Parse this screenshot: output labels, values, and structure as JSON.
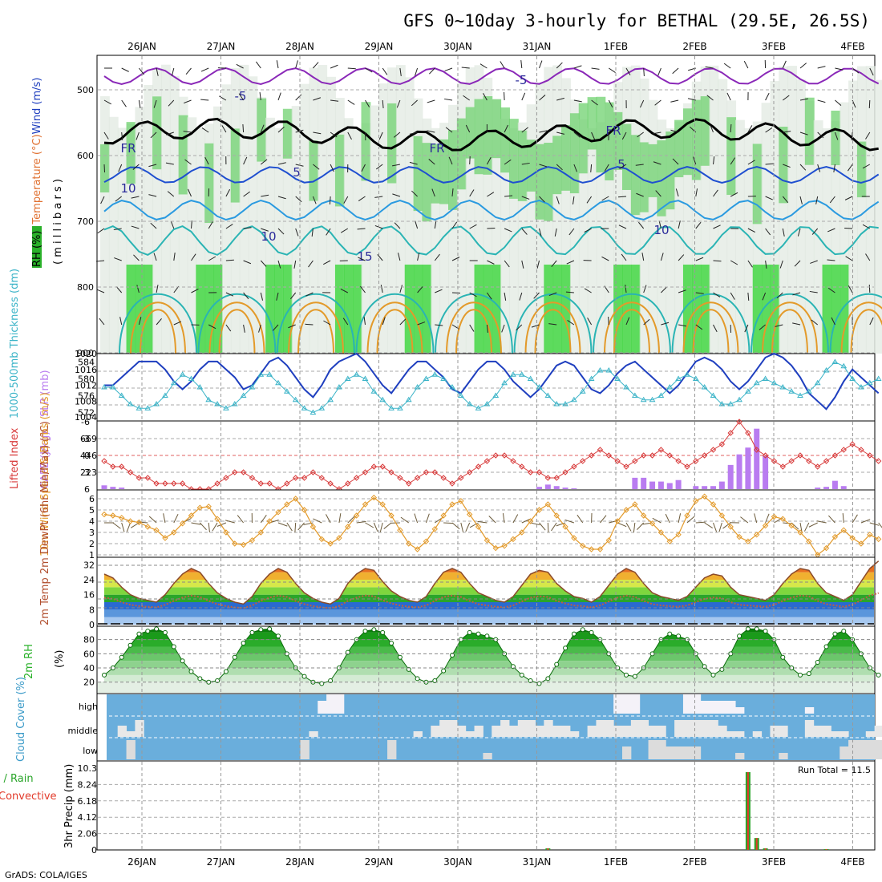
{
  "title": "GFS 0~10day 3-hourly for BETHAL (29.5E, 26.5S)",
  "credit": "GrADS: COLA/IGES",
  "dates": [
    "26JAN",
    "27JAN",
    "28JAN",
    "29JAN",
    "30JAN",
    "31JAN",
    "1FEB",
    "2FEB",
    "3FEB",
    "4FEB"
  ],
  "colors": {
    "slp": "#1f3fbf",
    "thickness": "#3cb4c8",
    "cape": "#b97cf0",
    "li": "#d83a3a",
    "speed": "#e39a2a",
    "barb": "#6b5a3a",
    "temp": "#8b4a2a",
    "dewpt": "#c06040",
    "rh": "#2ab12a",
    "cloud_bg": "#6aaedc",
    "cloud": "#eeeeee",
    "rain": "#2aa52a",
    "conv": "#e23a2a"
  },
  "chart_data": [
    {
      "type": "heatmap",
      "panel": "upper-air",
      "ylabel_parts": [
        "RH (%)",
        "Temperature (°C)",
        "Wind (m/s)"
      ],
      "yunit": "( m i l l i b a r s )",
      "yticks": [
        "500",
        "600",
        "700",
        "800",
        "900"
      ],
      "contour_labels": [
        "-5",
        "-5",
        "FR",
        "FR",
        "FR",
        "5",
        "5",
        "10",
        "10",
        "15",
        "10"
      ]
    },
    {
      "type": "line",
      "panel": "slp-thickness",
      "ylabel_left": "1000-500mb Thickness (dm)",
      "ylabel_right": "SLP (mb)",
      "yticks_left": [
        "584",
        "580",
        "576",
        "572"
      ],
      "yticks_right": [
        "1020",
        "1016",
        "1012",
        "1008",
        "1004"
      ],
      "ylim_left": [
        570,
        586
      ],
      "ylim_right": [
        1003,
        1020
      ],
      "series": [
        {
          "name": "SLP (mb)",
          "values": [
            1012,
            1012,
            1014,
            1016,
            1018,
            1018,
            1018,
            1016,
            1013,
            1011,
            1013,
            1016,
            1018,
            1018,
            1016,
            1014,
            1011,
            1012,
            1015,
            1018,
            1019,
            1017,
            1014,
            1011,
            1009,
            1012,
            1016,
            1018,
            1019,
            1020,
            1018,
            1015,
            1012,
            1010,
            1013,
            1016,
            1018,
            1018,
            1016,
            1014,
            1011,
            1010,
            1013,
            1016,
            1018,
            1018,
            1016,
            1013,
            1011,
            1009,
            1011,
            1014,
            1017,
            1018,
            1017,
            1014,
            1011,
            1010,
            1012,
            1015,
            1017,
            1018,
            1016,
            1014,
            1012,
            1010,
            1012,
            1015,
            1018,
            1019,
            1018,
            1016,
            1013,
            1011,
            1013,
            1016,
            1019,
            1020,
            1019,
            1017,
            1014,
            1010,
            1008,
            1006,
            1009,
            1013,
            1016,
            1014,
            1012,
            1010
          ]
        },
        {
          "name": "1000-500mb Thickness (dm)",
          "values": [
            578,
            578,
            576,
            574,
            573,
            573,
            574,
            576,
            579,
            581,
            580,
            578,
            575,
            574,
            573,
            574,
            576,
            578,
            581,
            581,
            579,
            577,
            575,
            573,
            572,
            573,
            575,
            578,
            580,
            581,
            580,
            577,
            575,
            573,
            573,
            575,
            578,
            580,
            581,
            580,
            578,
            576,
            574,
            573,
            574,
            576,
            579,
            581,
            581,
            580,
            578,
            576,
            574,
            574,
            575,
            577,
            580,
            582,
            582,
            580,
            578,
            576,
            575,
            575,
            576,
            578,
            580,
            581,
            580,
            578,
            576,
            574,
            574,
            575,
            577,
            579,
            580,
            579,
            578,
            577,
            576,
            577,
            579,
            582,
            584,
            583,
            580,
            578,
            579,
            580
          ]
        }
      ]
    },
    {
      "type": "bar",
      "panel": "cape-li",
      "ylabel_left": "Lifted Index",
      "ylabel_right": "CAPE (J/kg)",
      "yticks_left": [
        "-6",
        "-3",
        "0",
        "3",
        "6"
      ],
      "yticks_right": [
        "669",
        "446",
        "223"
      ],
      "ylim_cape": [
        0,
        892
      ],
      "cape": [
        50,
        30,
        20,
        0,
        0,
        0,
        0,
        0,
        0,
        0,
        0,
        0,
        0,
        0,
        0,
        0,
        0,
        0,
        0,
        0,
        0,
        0,
        0,
        0,
        0,
        0,
        0,
        0,
        0,
        0,
        0,
        0,
        0,
        0,
        0,
        0,
        0,
        0,
        0,
        0,
        0,
        0,
        0,
        0,
        0,
        0,
        0,
        0,
        0,
        0,
        30,
        60,
        40,
        20,
        10,
        0,
        0,
        0,
        0,
        0,
        0,
        150,
        150,
        100,
        100,
        80,
        120,
        0,
        40,
        40,
        40,
        100,
        320,
        460,
        550,
        800,
        440,
        0,
        0,
        0,
        0,
        0,
        20,
        30,
        110,
        40,
        0,
        0,
        0,
        0
      ],
      "lifted_index": [
        1,
        2,
        2,
        3,
        4,
        4,
        5,
        5,
        5,
        5,
        6,
        6,
        6,
        5,
        4,
        3,
        3,
        4,
        5,
        5,
        6,
        5,
        4,
        4,
        3,
        4,
        5,
        6,
        5,
        4,
        3,
        2,
        2,
        3,
        4,
        5,
        4,
        3,
        3,
        4,
        5,
        4,
        3,
        2,
        1,
        0,
        0,
        1,
        2,
        3,
        3,
        4,
        4,
        3,
        2,
        1,
        0,
        -1,
        0,
        1,
        2,
        1,
        0,
        0,
        -1,
        0,
        1,
        2,
        1,
        0,
        -1,
        -2,
        -4,
        -6,
        -4,
        -1,
        0,
        1,
        2,
        1,
        0,
        1,
        2,
        1,
        0,
        -1,
        -2,
        -1,
        0,
        1
      ]
    },
    {
      "type": "line",
      "panel": "wind10m",
      "ylabel": "10m Wind Speed & Barbs (m/s)",
      "yticks": [
        "6",
        "5",
        "4",
        "3",
        "2",
        "1"
      ],
      "ylim": [
        1,
        6.5
      ],
      "values": [
        4.6,
        4.5,
        4.3,
        4.0,
        3.9,
        3.5,
        3.2,
        2.5,
        3.0,
        3.8,
        4.5,
        5.2,
        5.3,
        4.2,
        3.0,
        2.0,
        1.9,
        2.3,
        3.0,
        4.0,
        4.8,
        5.5,
        6.0,
        5.0,
        3.5,
        2.4,
        2.0,
        2.5,
        3.5,
        4.5,
        5.5,
        6.1,
        5.5,
        4.5,
        3.2,
        2.0,
        1.5,
        2.2,
        3.3,
        4.5,
        5.5,
        5.8,
        4.6,
        3.5,
        2.3,
        1.6,
        1.8,
        2.4,
        3.0,
        4.0,
        5.0,
        5.5,
        4.5,
        3.5,
        2.5,
        1.8,
        1.5,
        1.5,
        2.3,
        4.0,
        5.0,
        5.5,
        4.5,
        3.8,
        3.0,
        2.2,
        2.8,
        4.5,
        5.8,
        6.2,
        5.5,
        4.5,
        3.5,
        2.6,
        2.2,
        2.8,
        3.6,
        4.4,
        4.2,
        3.6,
        3.0,
        2.2,
        1.0,
        1.6,
        2.6,
        3.2,
        2.5,
        2.0,
        2.8,
        2.4
      ]
    },
    {
      "type": "area",
      "panel": "temp2m",
      "ylabel": "2m Temp 2m DewPt (6hr Min/Max) (°C)",
      "yticks": [
        "32",
        "24",
        "16",
        "8",
        "0"
      ],
      "ylim": [
        0,
        36
      ],
      "temperature": [
        27,
        25,
        20,
        16,
        14,
        13,
        12,
        16,
        22,
        27,
        30,
        28,
        22,
        17,
        14,
        12,
        11,
        15,
        22,
        27,
        30,
        28,
        22,
        17,
        14,
        12,
        11,
        14,
        22,
        27,
        30,
        29,
        23,
        18,
        15,
        13,
        12,
        15,
        22,
        28,
        30,
        28,
        22,
        17,
        15,
        13,
        12,
        15,
        21,
        27,
        29,
        28,
        22,
        18,
        15,
        14,
        12,
        15,
        21,
        27,
        30,
        28,
        22,
        17,
        15,
        14,
        13,
        15,
        20,
        25,
        27,
        26,
        20,
        16,
        15,
        14,
        13,
        16,
        22,
        27,
        30,
        29,
        22,
        17,
        15,
        13,
        16,
        23,
        30,
        34
      ]
    }
  ],
  "rh2m": {
    "ylabel": "2m RH",
    "yunit": "(%)",
    "yticks": [
      "80",
      "60",
      "40",
      "20"
    ],
    "values": [
      30,
      40,
      55,
      72,
      88,
      92,
      95,
      90,
      70,
      50,
      35,
      25,
      20,
      22,
      35,
      55,
      75,
      90,
      94,
      95,
      85,
      60,
      40,
      28,
      20,
      18,
      22,
      40,
      62,
      80,
      92,
      94,
      90,
      75,
      55,
      38,
      25,
      20,
      22,
      36,
      58,
      80,
      90,
      88,
      85,
      80,
      60,
      42,
      30,
      22,
      18,
      25,
      45,
      68,
      88,
      94,
      90,
      80,
      60,
      40,
      30,
      28,
      40,
      60,
      80,
      88,
      85,
      80,
      60,
      42,
      30,
      38,
      60,
      85,
      95,
      95,
      92,
      80,
      55,
      40,
      30,
      32,
      48,
      70,
      88,
      92,
      80,
      60,
      40,
      30
    ]
  },
  "clouds": {
    "ylabel": "Cloud Cover (%)",
    "levels": [
      "high",
      "middle",
      "low"
    ]
  },
  "precip": {
    "ylabel": "3hr Precip (mm)",
    "yticks": [
      "10.3",
      "8.24",
      "6.18",
      "4.12",
      "2.06",
      "0"
    ],
    "legend_total": "Total / Rain",
    "legend_conv": "Convective",
    "run_total": "Run Total = 11.5"
  }
}
